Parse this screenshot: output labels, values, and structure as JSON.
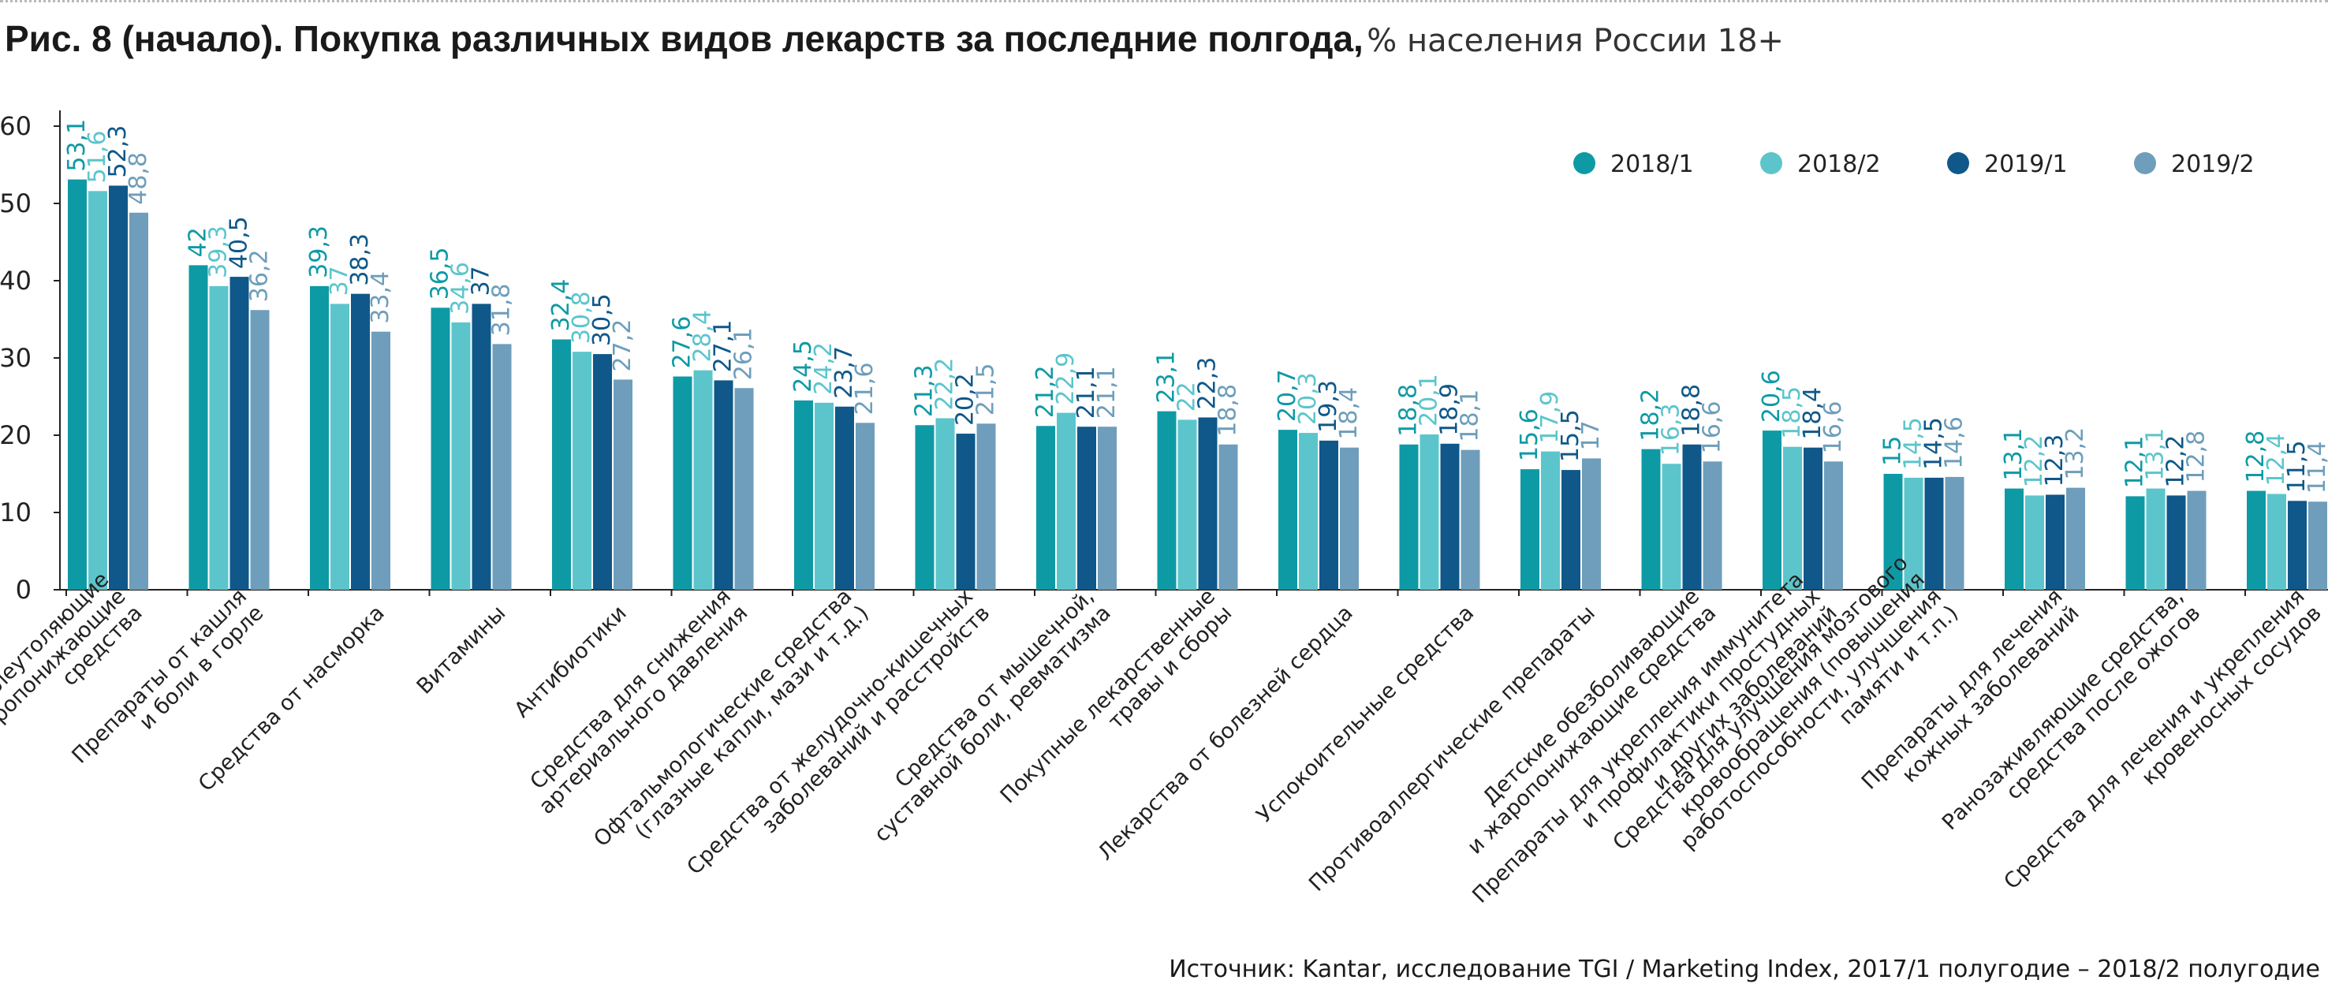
{
  "title": {
    "main": "Рис. 8 (начало). Покупка различных видов лекарств за последние полгода,",
    "sub": "% населения России 18+"
  },
  "source": "Источник: Kantar, исследование TGI / Marketing Index, 2017/1 полугодие – 2018/2 полугодие",
  "colors": {
    "2018/1": "#0e9aa5",
    "2018/2": "#5cc5cc",
    "2019/1": "#0f5889",
    "2019/2": "#6e9ebb",
    "axis": "#222222",
    "tick_text": "#222222"
  },
  "chart_data": {
    "type": "bar",
    "title": "Рис. 8 (начало). Покупка различных видов лекарств за последние полгода, % населения России 18+",
    "xlabel": "",
    "ylabel": "",
    "ylim": [
      0,
      60
    ],
    "yticks": [
      "0",
      "10",
      "20",
      "30",
      "40",
      "50",
      "60"
    ],
    "grid": false,
    "legend_position": "top-right",
    "categories": [
      [
        "Болеутоляющие",
        "и жаропонижающие",
        "средства"
      ],
      [
        "Препараты от кашля",
        "и боли в горле"
      ],
      [
        "Средства от насморка"
      ],
      [
        "Витамины"
      ],
      [
        "Антибиотики"
      ],
      [
        "Средства для снижения",
        "артериального давления"
      ],
      [
        "Офтальмологические средства",
        "(глазные капли, мази и т.д.)"
      ],
      [
        "Средства от желудочно-кишечных",
        "заболеваний и расстройств"
      ],
      [
        "Средства от мышечной,",
        "суставной боли, ревматизма"
      ],
      [
        "Покупные лекарственные",
        "травы и сборы"
      ],
      [
        "Лекарства от болезней сердца"
      ],
      [
        "Успокоительные средства"
      ],
      [
        "Противоаллергические препараты"
      ],
      [
        "Детские обезболивающие",
        "и жаропонижающие средства"
      ],
      [
        "Препараты для укрепления иммунитета",
        "и профилактики простудных",
        "и других заболеваний"
      ],
      [
        "Средства для улучшения мозгового",
        "кровообращения (повышения",
        "работоспособности, улучшения",
        "памяти и т.п.)"
      ],
      [
        "Препараты для лечения",
        "кожных заболеваний"
      ],
      [
        "Ранозаживляющие средства,",
        "средства после ожогов"
      ],
      [
        "Средства для лечения и укрепления",
        "кровеносных сосудов"
      ]
    ],
    "series": [
      {
        "name": "2018/1",
        "values": [
          53.1,
          42,
          39.3,
          36.5,
          32.4,
          27.6,
          24.5,
          21.3,
          21.2,
          23.1,
          20.7,
          18.8,
          15.6,
          18.2,
          20.6,
          15,
          13.1,
          12.1,
          12.8
        ],
        "labels": [
          "53,1",
          "42",
          "39,3",
          "36,5",
          "32,4",
          "27,6",
          "24,5",
          "21,3",
          "21,2",
          "23,1",
          "20,7",
          "18,8",
          "15,6",
          "18,2",
          "20,6",
          "15",
          "13,1",
          "12,1",
          "12,8"
        ]
      },
      {
        "name": "2018/2",
        "values": [
          51.6,
          39.3,
          37,
          34.6,
          30.8,
          28.4,
          24.2,
          22.2,
          22.9,
          22,
          20.3,
          20.1,
          17.9,
          16.3,
          18.5,
          14.5,
          12.2,
          13.1,
          12.4
        ],
        "labels": [
          "51,6",
          "39,3",
          "37",
          "34,6",
          "30,8",
          "28,4",
          "24,2",
          "22,2",
          "22,9",
          "22",
          "20,3",
          "20,1",
          "17,9",
          "16,3",
          "18,5",
          "14,5",
          "12,2",
          "13,1",
          "12,4"
        ]
      },
      {
        "name": "2019/1",
        "values": [
          52.3,
          40.5,
          38.3,
          37,
          30.5,
          27.1,
          23.7,
          20.2,
          21.1,
          22.3,
          19.3,
          18.9,
          15.5,
          18.8,
          18.4,
          14.5,
          12.3,
          12.2,
          11.5
        ],
        "labels": [
          "52,3",
          "40,5",
          "38,3",
          "37",
          "30,5",
          "27,1",
          "23,7",
          "20,2",
          "21,1",
          "22,3",
          "19,3",
          "18,9",
          "15,5",
          "18,8",
          "18,4",
          "14,5",
          "12,3",
          "12,2",
          "11,5"
        ]
      },
      {
        "name": "2019/2",
        "values": [
          48.8,
          36.2,
          33.4,
          31.8,
          27.2,
          26.1,
          21.6,
          21.5,
          21.1,
          18.8,
          18.4,
          18.1,
          17,
          16.6,
          16.6,
          14.6,
          13.2,
          12.8,
          11.4
        ],
        "labels": [
          "48,8",
          "36,2",
          "33,4",
          "31,8",
          "27,2",
          "26,1",
          "21,6",
          "21,5",
          "21,1",
          "18,8",
          "18,4",
          "18,1",
          "17",
          "16,6",
          "16,6",
          "14,6",
          "13,2",
          "12,8",
          "11,4"
        ]
      }
    ]
  }
}
